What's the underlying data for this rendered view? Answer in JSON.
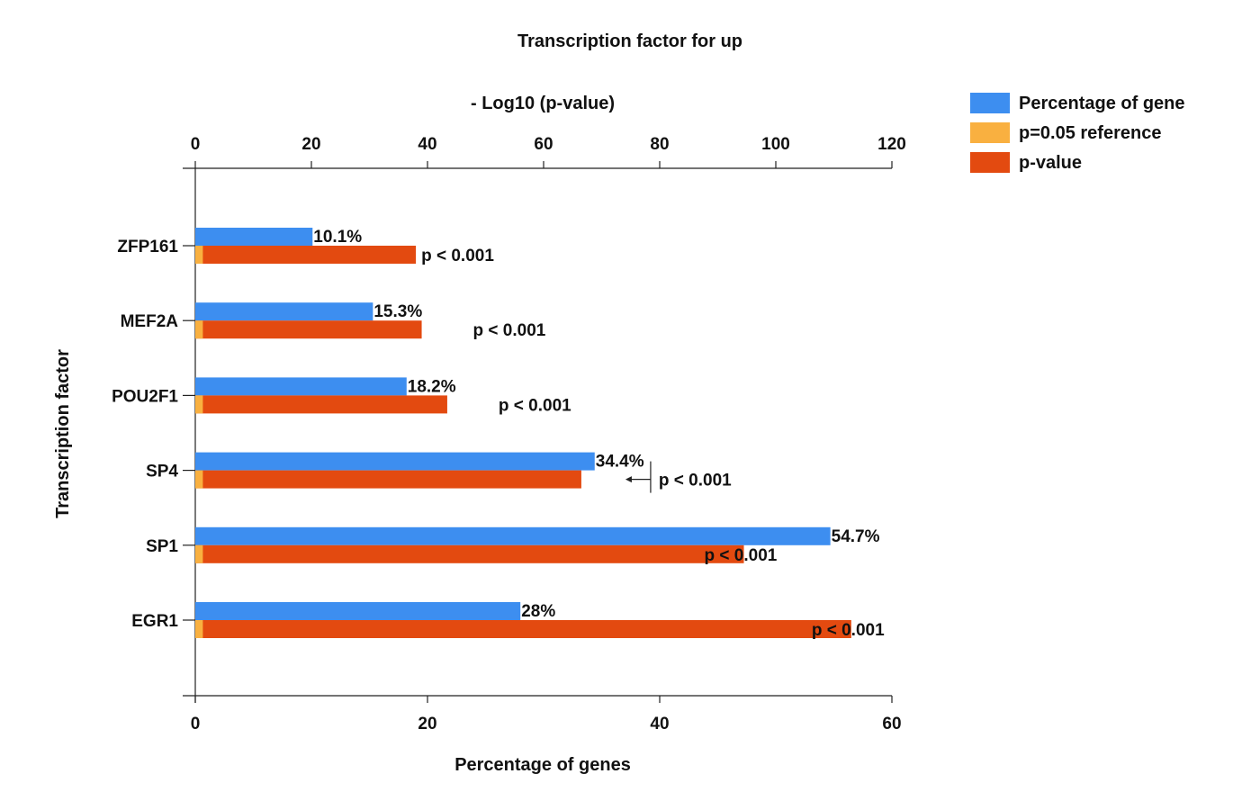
{
  "chart_data": {
    "type": "bar",
    "orientation": "horizontal",
    "title": "Transcription factor for up",
    "top_axis_label": "- Log10 (p-value)",
    "top_axis_ticks": [
      "0",
      "20",
      "40",
      "60",
      "80",
      "100",
      "120"
    ],
    "top_axis_range": [
      0,
      120
    ],
    "bottom_axis_label": "Percentage of genes",
    "bottom_axis_ticks": [
      "0",
      "20",
      "40",
      "60"
    ],
    "bottom_axis_range": [
      0,
      60
    ],
    "ylabel": "Transcription factor",
    "categories": [
      "ZFP161",
      "MEF2A",
      "POU2F1",
      "SP4",
      "SP1",
      "EGR1"
    ],
    "series": [
      {
        "name": "Percentage of gene",
        "color": "#3d8ef0",
        "axis": "bottom",
        "values": [
          10.1,
          15.3,
          18.2,
          34.4,
          54.7,
          28
        ],
        "labels": [
          "10.1%",
          "15.3%",
          "18.2%",
          "34.4%",
          "54.7%",
          "28%"
        ]
      },
      {
        "name": "p=0.05 reference",
        "color": "#f9b040",
        "axis": "top",
        "values": [
          1.3,
          1.3,
          1.3,
          1.3,
          1.3,
          1.3
        ]
      },
      {
        "name": "p-value",
        "color": "#e34a10",
        "axis": "top",
        "values": [
          38,
          39,
          43.4,
          66.5,
          94.5,
          113
        ],
        "labels": [
          "p < 0.001",
          "p < 0.001",
          "p < 0.001",
          "p < 0.001",
          "p < 0.001",
          "p < 0.001"
        ]
      }
    ],
    "legend_position": "top-right",
    "grid": false
  }
}
